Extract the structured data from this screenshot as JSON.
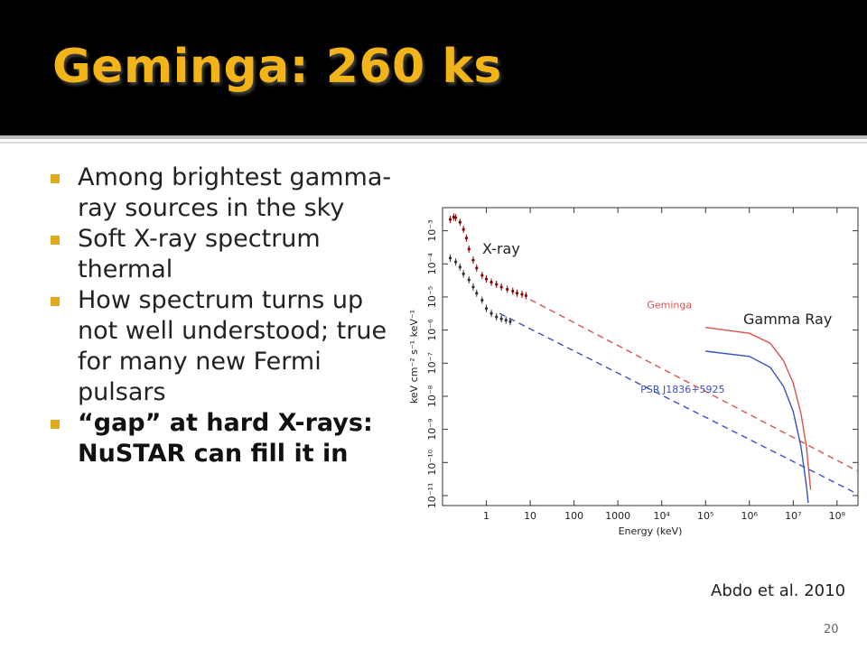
{
  "slide": {
    "title": "Geminga: 260 ks",
    "bullets": [
      {
        "text": "Among brightest gamma-ray sources in the sky",
        "bold": false
      },
      {
        "text": "Soft X-ray spectrum thermal",
        "bold": false
      },
      {
        "text": "How spectrum turns up not well understood; true for many new Fermi pulsars",
        "bold": false
      },
      {
        "text": "“gap” at hard X-rays: NuSTAR can fill it in",
        "bold": true
      }
    ],
    "annotations": {
      "xray": "X-ray",
      "gamma": "Gamma Ray"
    },
    "citation": "Abdo et al. 2010",
    "page_number": "20",
    "colors": {
      "title": "#f2b418",
      "bullet": "#e5a823",
      "header_bg": "#000000"
    }
  },
  "chart_data": {
    "type": "line",
    "xlabel": "Energy (keV)",
    "ylabel": "keV cm⁻² s⁻¹ keV⁻¹",
    "xscale": "log",
    "yscale": "log",
    "xlim": [
      0.1,
      300000000
    ],
    "ylim": [
      5e-12,
      0.005
    ],
    "x_ticks": [
      {
        "value": 1,
        "label": "1"
      },
      {
        "value": 10,
        "label": "10"
      },
      {
        "value": 100,
        "label": "100"
      },
      {
        "value": 1000,
        "label": "1000"
      },
      {
        "value": 10000,
        "label": "10⁴"
      },
      {
        "value": 100000,
        "label": "10⁵"
      },
      {
        "value": 1000000,
        "label": "10⁶"
      },
      {
        "value": 10000000,
        "label": "10⁷"
      },
      {
        "value": 100000000,
        "label": "10⁸"
      }
    ],
    "y_ticks": [
      {
        "value": 0.001,
        "label": "10⁻³"
      },
      {
        "value": 0.0001,
        "label": "10⁻⁴"
      },
      {
        "value": 1e-05,
        "label": "10⁻⁵"
      },
      {
        "value": 1e-06,
        "label": "10⁻⁶"
      },
      {
        "value": 1e-07,
        "label": "10⁻⁷"
      },
      {
        "value": 1e-08,
        "label": "10⁻⁸"
      },
      {
        "value": 1e-09,
        "label": "10⁻⁹"
      },
      {
        "value": 1e-10,
        "label": "10⁻¹⁰"
      },
      {
        "value": 1e-11,
        "label": "10⁻¹¹"
      }
    ],
    "grid": false,
    "series": [
      {
        "name": "Geminga",
        "color": "#d9534f",
        "style": "solid",
        "points": [
          [
            100000,
            1.2e-06
          ],
          [
            1000000,
            8e-07
          ],
          [
            3000000,
            4e-07
          ],
          [
            6000000,
            1.2e-07
          ],
          [
            10000000,
            2.5e-08
          ],
          [
            15000000,
            3e-09
          ],
          [
            20000000,
            3e-10
          ],
          [
            25000000,
            1.5e-11
          ]
        ]
      },
      {
        "name": "Geminga",
        "color": "#d9534f",
        "style": "dashed",
        "points": [
          [
            10,
            8.3e-06
          ],
          [
            300000000,
            5.4e-11
          ]
        ]
      },
      {
        "name": "PSR J1836+5925",
        "color": "#3b4fc7",
        "style": "solid",
        "points": [
          [
            100000,
            2.3e-07
          ],
          [
            1000000,
            1.6e-07
          ],
          [
            3000000,
            7.5e-08
          ],
          [
            6000000,
            2e-08
          ],
          [
            10000000,
            3.5e-09
          ],
          [
            15000000,
            3e-10
          ],
          [
            20000000,
            2e-11
          ],
          [
            22000000,
            6e-12
          ]
        ]
      },
      {
        "name": "PSR J1836+5925",
        "color": "#3b4fc7",
        "style": "dashed",
        "points": [
          [
            2,
            3.2e-06
          ],
          [
            300000000,
            1.1e-11
          ]
        ]
      },
      {
        "name": "Geminga X-ray data",
        "color": "#8b0000",
        "style": "points",
        "points": [
          [
            0.15,
            0.0022
          ],
          [
            0.18,
            0.0026
          ],
          [
            0.2,
            0.0025
          ],
          [
            0.25,
            0.0018
          ],
          [
            0.3,
            0.0011
          ],
          [
            0.35,
            0.0006
          ],
          [
            0.4,
            0.00028
          ],
          [
            0.5,
            0.00013
          ],
          [
            0.6,
            7.5e-05
          ],
          [
            0.8,
            4.5e-05
          ],
          [
            1.0,
            3.5e-05
          ],
          [
            1.3,
            2.8e-05
          ],
          [
            1.7,
            2.4e-05
          ],
          [
            2.2,
            2e-05
          ],
          [
            3,
            1.7e-05
          ],
          [
            4,
            1.5e-05
          ],
          [
            5,
            1.3e-05
          ],
          [
            6.5,
            1.2e-05
          ],
          [
            8,
            1.1e-05
          ]
        ]
      },
      {
        "name": "PSR J1836+5925 X-ray data",
        "color": "#303030",
        "style": "points",
        "points": [
          [
            0.15,
            0.00015
          ],
          [
            0.2,
            0.000115
          ],
          [
            0.25,
            8e-05
          ],
          [
            0.3,
            5e-05
          ],
          [
            0.4,
            3.3e-05
          ],
          [
            0.5,
            2e-05
          ],
          [
            0.6,
            1.3e-05
          ],
          [
            0.8,
            8e-06
          ],
          [
            1.0,
            4.5e-06
          ],
          [
            1.3,
            3.2e-06
          ],
          [
            1.7,
            2.5e-06
          ],
          [
            2.2,
            2.2e-06
          ],
          [
            2.8,
            2e-06
          ],
          [
            3.5,
            1.8e-06
          ]
        ]
      }
    ],
    "inline_labels": [
      {
        "text": "Geminga",
        "x": 15000,
        "y": 4.5e-06,
        "color": "#d9534f"
      },
      {
        "text": "PSR J1836+5925",
        "x": 30000,
        "y": 1.3e-08,
        "color": "#3b4fc7"
      }
    ]
  }
}
